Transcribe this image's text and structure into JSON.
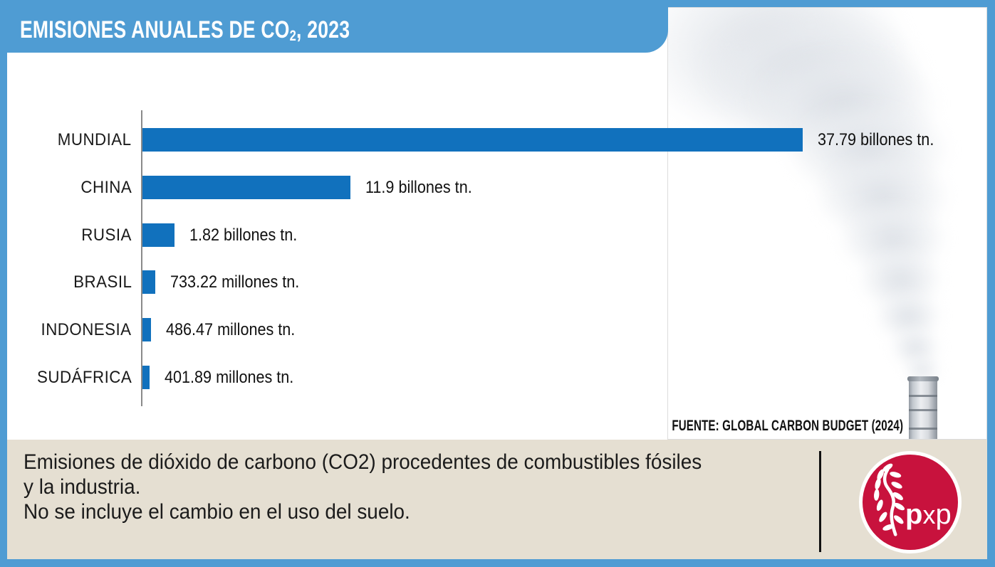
{
  "header": {
    "title_main": "EMISIONES ANUALES DE CO",
    "title_sub": "2",
    "title_tail": ", 2023"
  },
  "chart_data": {
    "type": "bar",
    "orientation": "horizontal",
    "title": "EMISIONES ANUALES DE CO₂, 2023",
    "categories": [
      "MUNDIAL",
      "CHINA",
      "RUSIA",
      "BRASIL",
      "INDONESIA",
      "SUDÁFRICA"
    ],
    "values_billones_tn": [
      37.79,
      11.9,
      1.82,
      0.73322,
      0.48647,
      0.40189
    ],
    "value_labels": [
      "37.79 billones tn.",
      "11.9 billones tn.",
      "1.82 billones tn.",
      "733.22 millones tn.",
      "486.47 millones tn.",
      "401.89 millones tn."
    ],
    "xlim_billones": [
      0,
      37.79
    ],
    "unit": "toneladas de CO2",
    "grid": false,
    "legend": "none",
    "bar_color": "#1171BD",
    "axis_color": "#8A8A8A",
    "source": "FUENTE: GLOBAL CARBON BUDGET (2024)"
  },
  "footer": {
    "lines": [
      "Emisiones de dióxido de carbono (CO2) procedentes de combustibles fósiles",
      "y la industria.",
      "No se incluye el cambio en el uso del suelo."
    ],
    "logo": {
      "p1": "p",
      "x": "x",
      "p2": "p"
    }
  },
  "colors": {
    "frame_blue": "#4F9CD3",
    "bar_blue": "#1171BD",
    "footer_beige": "#E5DFD2",
    "logo_red": "#C8123D",
    "text_black": "#1A1A1A"
  }
}
